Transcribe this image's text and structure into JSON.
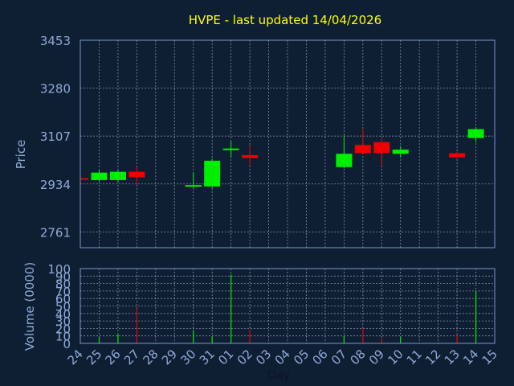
{
  "chart_data": [
    {
      "type": "candlestick",
      "title": "HVPE - last updated 14/04/2026",
      "ylabel": "Price",
      "ylim": [
        2704,
        3453
      ],
      "yticks": [
        2761,
        2934,
        3107,
        3280,
        3453
      ],
      "grid": true,
      "categories": [
        "24",
        "25",
        "26",
        "27",
        "28",
        "29",
        "30",
        "31",
        "01",
        "02",
        "03",
        "04",
        "05",
        "06",
        "07",
        "08",
        "09",
        "10",
        "11",
        "12",
        "13",
        "14",
        "15"
      ],
      "candles": [
        {
          "x": "24",
          "open": 2955,
          "high": 2955,
          "low": 2951,
          "close": 2951
        },
        {
          "x": "25",
          "open": 2948,
          "high": 2985,
          "low": 2944,
          "close": 2975
        },
        {
          "x": "26",
          "open": 2948,
          "high": 2985,
          "low": 2940,
          "close": 2978
        },
        {
          "x": "27",
          "open": 2978,
          "high": 2995,
          "low": 2930,
          "close": 2958
        },
        {
          "x": "30",
          "open": 2925,
          "high": 2975,
          "low": 2920,
          "close": 2930
        },
        {
          "x": "31",
          "open": 2925,
          "high": 3025,
          "low": 2920,
          "close": 3018
        },
        {
          "x": "01",
          "open": 3058,
          "high": 3090,
          "low": 3030,
          "close": 3062
        },
        {
          "x": "02",
          "open": 3038,
          "high": 3075,
          "low": 3000,
          "close": 3028
        },
        {
          "x": "07",
          "open": 2995,
          "high": 3110,
          "low": 2990,
          "close": 3043
        },
        {
          "x": "08",
          "open": 3075,
          "high": 3132,
          "low": 3040,
          "close": 3045
        },
        {
          "x": "09",
          "open": 3085,
          "high": 3095,
          "low": 3000,
          "close": 3045
        },
        {
          "x": "10",
          "open": 3043,
          "high": 3070,
          "low": 3030,
          "close": 3058
        },
        {
          "x": "13",
          "open": 3045,
          "high": 3050,
          "low": 3025,
          "close": 3030
        },
        {
          "x": "14",
          "open": 3100,
          "high": 3140,
          "low": 3085,
          "close": 3132
        }
      ]
    },
    {
      "type": "bar",
      "xlabel": "Day",
      "ylabel": "Volume (0000)",
      "ylim": [
        0,
        100
      ],
      "yticks": [
        0,
        10,
        20,
        30,
        40,
        50,
        60,
        70,
        80,
        90,
        100
      ],
      "grid": true,
      "categories": [
        "24",
        "25",
        "26",
        "27",
        "28",
        "29",
        "30",
        "31",
        "01",
        "02",
        "03",
        "04",
        "05",
        "06",
        "07",
        "08",
        "09",
        "10",
        "11",
        "12",
        "13",
        "14",
        "15"
      ],
      "values": [
        0,
        8,
        12,
        47,
        0,
        0,
        17,
        9,
        92,
        18,
        0,
        0,
        0,
        0,
        10,
        20,
        6,
        9,
        0,
        0,
        12,
        70,
        0
      ],
      "bar_direction": [
        "none",
        "up",
        "up",
        "down",
        "none",
        "none",
        "up",
        "up",
        "up",
        "down",
        "none",
        "none",
        "none",
        "none",
        "up",
        "down",
        "down",
        "up",
        "none",
        "none",
        "down",
        "up",
        "none"
      ]
    }
  ],
  "colors": {
    "background": "#0f1f33",
    "axes": "#7a96c8",
    "grid": "#d0d8e8",
    "text": "#8eaad8",
    "title": "#ffff00",
    "up": "#00ee00",
    "down": "#ee0000"
  }
}
